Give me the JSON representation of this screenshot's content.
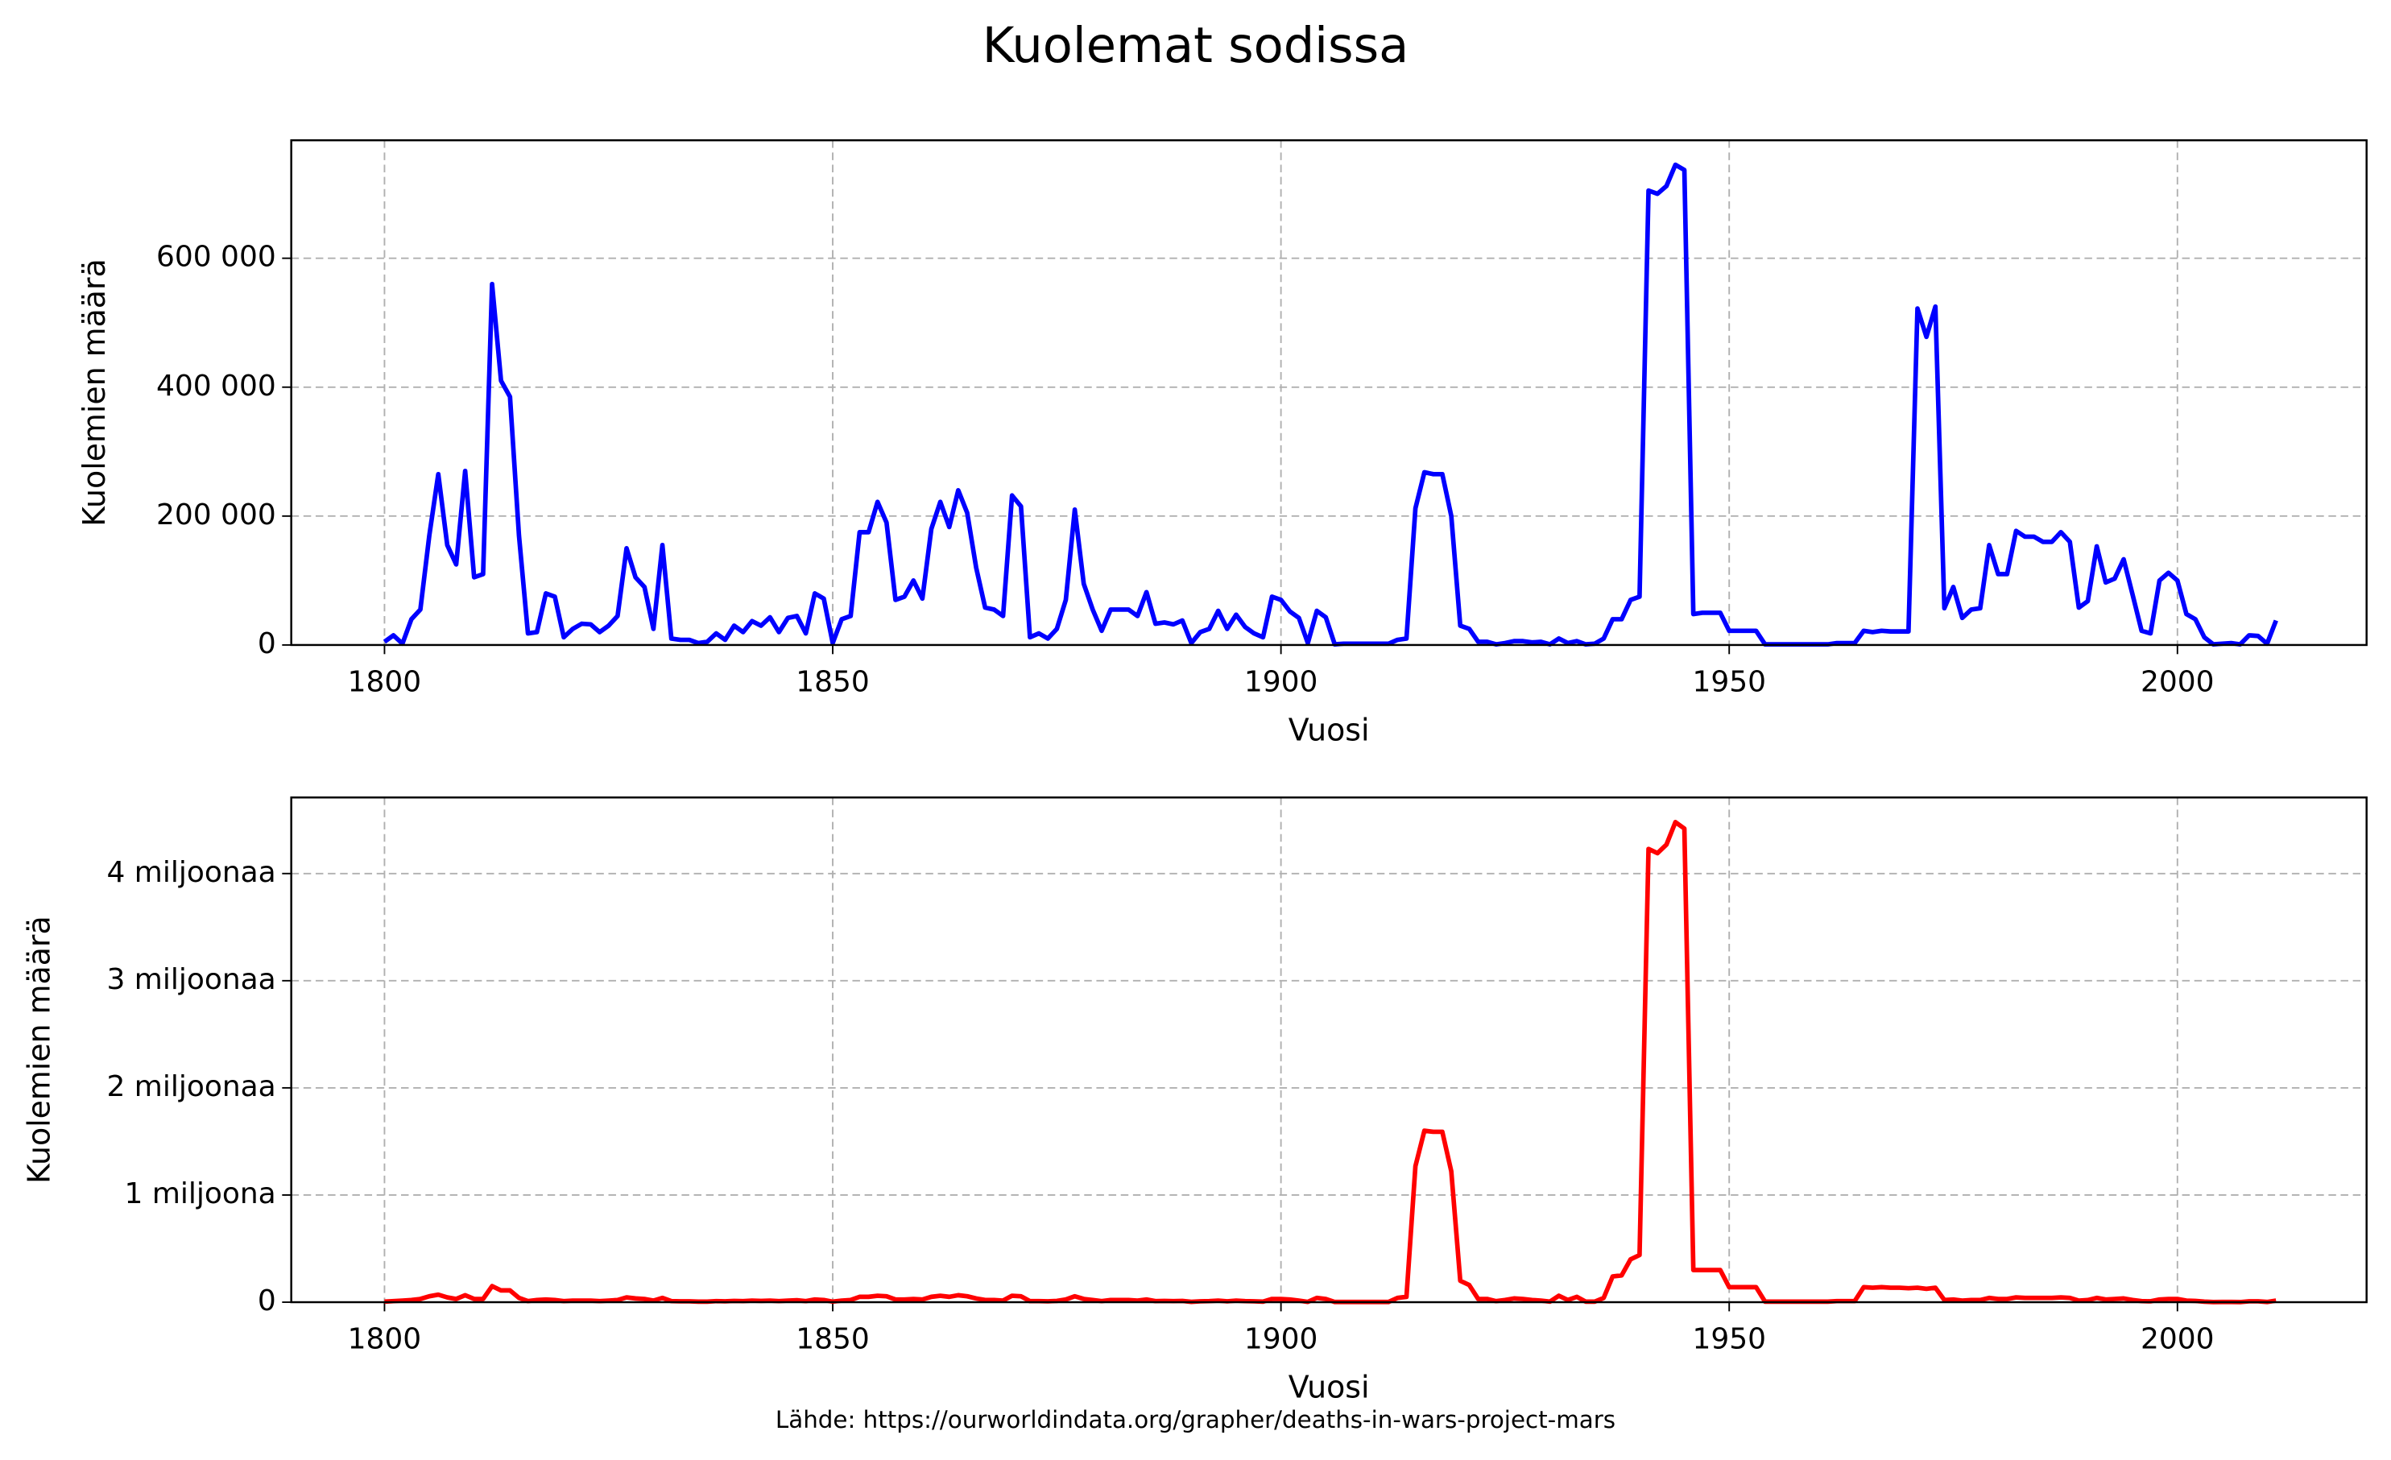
{
  "title": "Kuolemat sodissa",
  "source": "Lähde: https://ourworldindata.org/grapher/deaths-in-wars-project-mars",
  "chart_data": [
    {
      "type": "line",
      "xlabel": "Vuosi",
      "ylabel": "Kuolemien määrä",
      "color": "#0000ff",
      "grid": true,
      "x": [
        1800,
        1801,
        1802,
        1803,
        1804,
        1805,
        1806,
        1807,
        1808,
        1809,
        1810,
        1811,
        1812,
        1813,
        1814,
        1815,
        1816,
        1817,
        1818,
        1819,
        1820,
        1821,
        1822,
        1823,
        1824,
        1825,
        1826,
        1827,
        1828,
        1829,
        1830,
        1831,
        1832,
        1833,
        1834,
        1835,
        1836,
        1837,
        1838,
        1839,
        1840,
        1841,
        1842,
        1843,
        1844,
        1845,
        1846,
        1847,
        1848,
        1849,
        1850,
        1851,
        1852,
        1853,
        1854,
        1855,
        1856,
        1857,
        1858,
        1859,
        1860,
        1861,
        1862,
        1863,
        1864,
        1865,
        1866,
        1867,
        1868,
        1869,
        1870,
        1871,
        1872,
        1873,
        1874,
        1875,
        1876,
        1877,
        1878,
        1879,
        1880,
        1881,
        1882,
        1883,
        1884,
        1885,
        1886,
        1887,
        1888,
        1889,
        1890,
        1891,
        1892,
        1893,
        1894,
        1895,
        1896,
        1897,
        1898,
        1899,
        1900,
        1901,
        1902,
        1903,
        1904,
        1905,
        1906,
        1907,
        1908,
        1909,
        1910,
        1911,
        1912,
        1913,
        1914,
        1915,
        1916,
        1917,
        1918,
        1919,
        1920,
        1921,
        1922,
        1923,
        1924,
        1925,
        1926,
        1927,
        1928,
        1929,
        1930,
        1931,
        1932,
        1933,
        1934,
        1935,
        1936,
        1937,
        1938,
        1939,
        1940,
        1941,
        1942,
        1943,
        1944,
        1945,
        1946,
        1947,
        1948,
        1949,
        1950,
        1951,
        1952,
        1953,
        1954,
        1955,
        1956,
        1957,
        1958,
        1959,
        1960,
        1961,
        1962,
        1963,
        1964,
        1965,
        1966,
        1967,
        1968,
        1969,
        1970,
        1971,
        1972,
        1973,
        1974,
        1975,
        1976,
        1977,
        1978,
        1979,
        1980,
        1981,
        1982,
        1983,
        1984,
        1985,
        1986,
        1987,
        1988,
        1989,
        1990,
        1991,
        1992,
        1993,
        1994,
        1995,
        1996,
        1997,
        1998,
        1999,
        2000,
        2001,
        2002,
        2003,
        2004,
        2005,
        2006,
        2007,
        2008,
        2009,
        2010,
        2011
      ],
      "values": [
        5000,
        15000,
        2000,
        40000,
        55000,
        170000,
        265000,
        155000,
        125000,
        270000,
        105000,
        110000,
        560000,
        410000,
        385000,
        170000,
        18000,
        20000,
        80000,
        75000,
        12000,
        25000,
        33000,
        32000,
        20000,
        30000,
        45000,
        150000,
        105000,
        90000,
        25000,
        155000,
        10000,
        8000,
        8000,
        3000,
        5000,
        18000,
        8000,
        30000,
        20000,
        37000,
        30000,
        43000,
        20000,
        42000,
        45000,
        18000,
        80000,
        72000,
        3000,
        40000,
        45000,
        175000,
        175000,
        222000,
        190000,
        70000,
        75000,
        100000,
        72000,
        180000,
        222000,
        183000,
        240000,
        205000,
        120000,
        58000,
        55000,
        45000,
        232000,
        215000,
        12000,
        18000,
        10000,
        25000,
        70000,
        210000,
        95000,
        55000,
        22000,
        55000,
        55000,
        55000,
        45000,
        82000,
        33000,
        35000,
        32000,
        38000,
        3000,
        20000,
        25000,
        53000,
        25000,
        47000,
        28000,
        18000,
        12000,
        75000,
        70000,
        52000,
        42000,
        3000,
        53000,
        43000,
        1000,
        2000,
        2000,
        2000,
        2000,
        2000,
        2000,
        8000,
        10000,
        212000,
        268000,
        265000,
        265000,
        200000,
        30000,
        25000,
        5000,
        5000,
        1000,
        3000,
        6000,
        6000,
        4000,
        5000,
        1000,
        10000,
        3000,
        6000,
        1000,
        2000,
        10000,
        40000,
        40000,
        70000,
        75000,
        705000,
        700000,
        712000,
        745000,
        737000,
        48000,
        50000,
        50000,
        50000,
        22000,
        22000,
        22000,
        22000,
        1000,
        1000,
        1000,
        1000,
        1000,
        1000,
        1000,
        1000,
        3000,
        3000,
        3000,
        22000,
        20000,
        22000,
        21000,
        21000,
        21000,
        522000,
        478000,
        525000,
        57000,
        90000,
        42000,
        55000,
        57000,
        155000,
        110000,
        110000,
        177000,
        168000,
        168000,
        160000,
        160000,
        175000,
        160000,
        58000,
        68000,
        153000,
        97000,
        103000,
        133000,
        78000,
        22000,
        18000,
        100000,
        112000,
        100000,
        48000,
        40000,
        12000,
        1000,
        2000,
        3000,
        1000,
        15000,
        14000,
        2000,
        38000
      ],
      "xlim": [
        1789.6,
        2021.1
      ],
      "xticks": [
        1800,
        1850,
        1900,
        1950,
        2000
      ],
      "ylim": [
        0,
        783000
      ],
      "yticks": [
        0,
        {
          "value": 200000,
          "label": "200 000"
        },
        {
          "value": 400000,
          "label": "400 000"
        },
        {
          "value": 600000,
          "label": "600 000"
        }
      ]
    },
    {
      "type": "line",
      "xlabel": "Vuosi",
      "ylabel": "Kuolemien määrä",
      "color": "#ff0000",
      "grid": true,
      "x": [
        1800,
        1801,
        1802,
        1803,
        1804,
        1805,
        1806,
        1807,
        1808,
        1809,
        1810,
        1811,
        1812,
        1813,
        1814,
        1815,
        1816,
        1817,
        1818,
        1819,
        1820,
        1821,
        1822,
        1823,
        1824,
        1825,
        1826,
        1827,
        1828,
        1829,
        1830,
        1831,
        1832,
        1833,
        1834,
        1835,
        1836,
        1837,
        1838,
        1839,
        1840,
        1841,
        1842,
        1843,
        1844,
        1845,
        1846,
        1847,
        1848,
        1849,
        1850,
        1851,
        1852,
        1853,
        1854,
        1855,
        1856,
        1857,
        1858,
        1859,
        1860,
        1861,
        1862,
        1863,
        1864,
        1865,
        1866,
        1867,
        1868,
        1869,
        1870,
        1871,
        1872,
        1873,
        1874,
        1875,
        1876,
        1877,
        1878,
        1879,
        1880,
        1881,
        1882,
        1883,
        1884,
        1885,
        1886,
        1887,
        1888,
        1889,
        1890,
        1891,
        1892,
        1893,
        1894,
        1895,
        1896,
        1897,
        1898,
        1899,
        1900,
        1901,
        1902,
        1903,
        1904,
        1905,
        1906,
        1907,
        1908,
        1909,
        1910,
        1911,
        1912,
        1913,
        1914,
        1915,
        1916,
        1917,
        1918,
        1919,
        1920,
        1921,
        1922,
        1923,
        1924,
        1925,
        1926,
        1927,
        1928,
        1929,
        1930,
        1931,
        1932,
        1933,
        1934,
        1935,
        1936,
        1937,
        1938,
        1939,
        1940,
        1941,
        1942,
        1943,
        1944,
        1945,
        1946,
        1947,
        1948,
        1949,
        1950,
        1951,
        1952,
        1953,
        1954,
        1955,
        1956,
        1957,
        1958,
        1959,
        1960,
        1961,
        1962,
        1963,
        1964,
        1965,
        1966,
        1967,
        1968,
        1969,
        1970,
        1971,
        1972,
        1973,
        1974,
        1975,
        1976,
        1977,
        1978,
        1979,
        1980,
        1981,
        1982,
        1983,
        1984,
        1985,
        1986,
        1987,
        1988,
        1989,
        1990,
        1991,
        1992,
        1993,
        1994,
        1995,
        1996,
        1997,
        1998,
        1999,
        2000,
        2001,
        2002,
        2003,
        2004,
        2005,
        2006,
        2007,
        2008,
        2009,
        2010,
        2011
      ],
      "values": [
        5000,
        10000,
        15000,
        20000,
        30000,
        55000,
        70000,
        45000,
        30000,
        65000,
        30000,
        30000,
        150000,
        110000,
        110000,
        40000,
        10000,
        20000,
        25000,
        20000,
        10000,
        15000,
        15000,
        15000,
        10000,
        15000,
        20000,
        45000,
        35000,
        30000,
        15000,
        40000,
        10000,
        8000,
        8000,
        5000,
        5000,
        10000,
        8000,
        12000,
        10000,
        15000,
        12000,
        15000,
        10000,
        15000,
        18000,
        10000,
        25000,
        20000,
        5000,
        15000,
        20000,
        50000,
        50000,
        60000,
        55000,
        25000,
        25000,
        30000,
        25000,
        50000,
        60000,
        50000,
        65000,
        55000,
        35000,
        20000,
        20000,
        15000,
        60000,
        55000,
        10000,
        10000,
        8000,
        12000,
        25000,
        55000,
        30000,
        20000,
        10000,
        20000,
        20000,
        20000,
        15000,
        25000,
        10000,
        12000,
        10000,
        12000,
        3000,
        8000,
        10000,
        15000,
        8000,
        15000,
        10000,
        8000,
        5000,
        30000,
        30000,
        25000,
        15000,
        3000,
        40000,
        30000,
        2000,
        2000,
        2000,
        2000,
        2000,
        2000,
        2000,
        40000,
        50000,
        1270000,
        1600000,
        1590000,
        1590000,
        1220000,
        200000,
        160000,
        30000,
        30000,
        10000,
        20000,
        35000,
        30000,
        20000,
        15000,
        5000,
        60000,
        20000,
        50000,
        5000,
        5000,
        40000,
        240000,
        250000,
        400000,
        440000,
        4230000,
        4190000,
        4270000,
        4480000,
        4420000,
        300000,
        300000,
        300000,
        300000,
        140000,
        140000,
        140000,
        140000,
        5000,
        5000,
        5000,
        5000,
        5000,
        5000,
        5000,
        5000,
        10000,
        10000,
        10000,
        140000,
        135000,
        140000,
        135000,
        135000,
        130000,
        135000,
        125000,
        135000,
        20000,
        25000,
        15000,
        20000,
        20000,
        40000,
        30000,
        30000,
        45000,
        40000,
        40000,
        40000,
        40000,
        45000,
        40000,
        15000,
        20000,
        40000,
        25000,
        30000,
        35000,
        20000,
        10000,
        8000,
        25000,
        30000,
        30000,
        15000,
        12000,
        5000,
        1000,
        2000,
        2000,
        1000,
        8000,
        8000,
        2000,
        15000
      ],
      "xlim": [
        1789.6,
        2021.1
      ],
      "xticks": [
        1800,
        1850,
        1900,
        1950,
        2000
      ],
      "ylim": [
        0,
        4710000
      ],
      "yticks": [
        0,
        {
          "value": 1000000,
          "label": "1 miljoona"
        },
        {
          "value": 2000000,
          "label": "2 miljoonaa"
        },
        {
          "value": 3000000,
          "label": "3 miljoonaa"
        },
        {
          "value": 4000000,
          "label": "4 miljoonaa"
        }
      ]
    }
  ]
}
